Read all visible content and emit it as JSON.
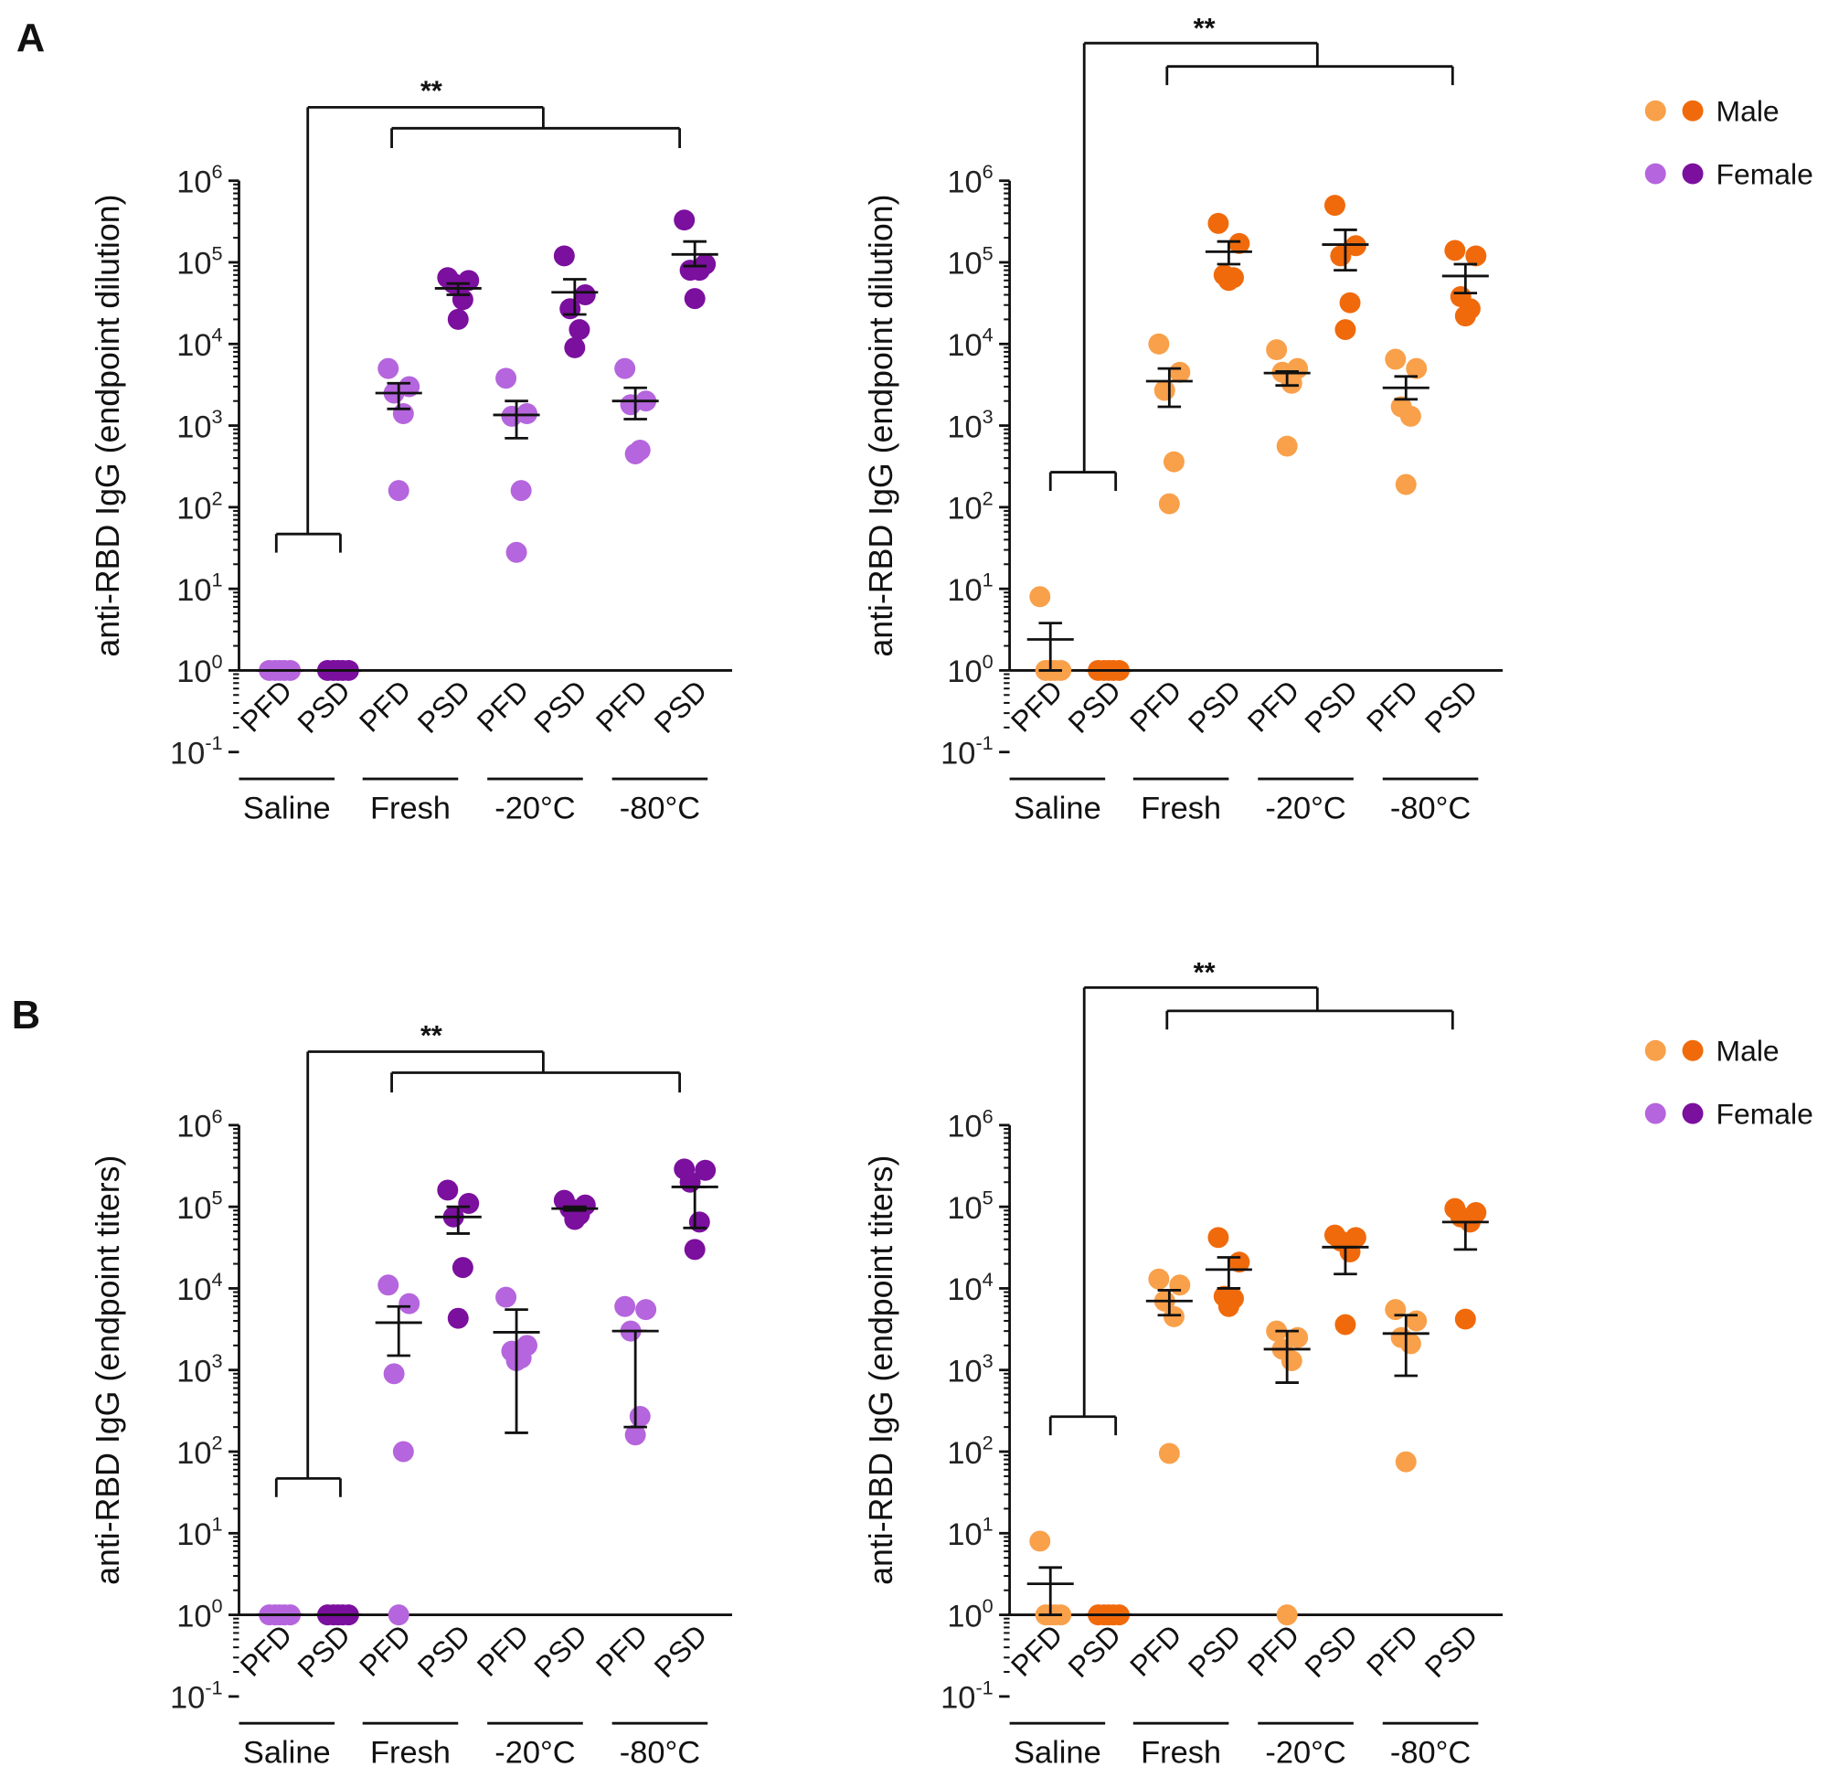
{
  "figure": {
    "panel_labels": [
      "A",
      "B"
    ]
  },
  "legend": {
    "items": [
      {
        "label": "Male",
        "colors": [
          "#f9a04a",
          "#f06a0c"
        ]
      },
      {
        "label": "Female",
        "colors": [
          "#b565dd",
          "#7b0f9e"
        ]
      }
    ]
  },
  "chart_data": [
    {
      "panel": "A",
      "position": "left",
      "type": "scatter",
      "ylabel": "anti-RBD IgG (endpoint dilution)",
      "yscale": "log",
      "ylim": [
        0.1,
        1000000
      ],
      "ytick_base": "10",
      "ytick_exponents": [
        -1,
        0,
        1,
        2,
        3,
        4,
        5,
        6
      ],
      "subgroups": [
        "PFD",
        "PSD",
        "PFD",
        "PSD",
        "PFD",
        "PSD",
        "PFD",
        "PSD"
      ],
      "groups": [
        "Saline",
        "Fresh",
        "-20°C",
        "-80°C"
      ],
      "significance": "**",
      "series": {
        "name": "Female",
        "colors": [
          "#b565dd",
          "#7b0f9e"
        ],
        "points": [
          [
            1,
            1,
            1,
            1,
            1
          ],
          [
            1,
            1,
            1,
            1,
            1
          ],
          [
            5000,
            3000,
            2500,
            1400,
            160
          ],
          [
            65000,
            60000,
            55000,
            35000,
            20000
          ],
          [
            3800,
            1400,
            1300,
            160,
            28
          ],
          [
            120000,
            40000,
            27000,
            15000,
            9000
          ],
          [
            5000,
            2000,
            1800,
            500,
            450
          ],
          [
            330000,
            95000,
            80000,
            80000,
            36000
          ]
        ],
        "means": [
          1,
          1,
          2500,
          48000,
          1350,
          43000,
          2000,
          125000
        ],
        "errors": [
          [
            1,
            1
          ],
          [
            1,
            1
          ],
          [
            1600,
            3300
          ],
          [
            40000,
            55000
          ],
          [
            700,
            2000
          ],
          [
            23000,
            62000
          ],
          [
            1200,
            2900
          ],
          [
            90000,
            180000
          ]
        ]
      }
    },
    {
      "panel": "A",
      "position": "right",
      "type": "scatter",
      "ylabel": "anti-RBD IgG (endpoint dilution)",
      "yscale": "log",
      "ylim": [
        0.1,
        1000000
      ],
      "ytick_base": "10",
      "ytick_exponents": [
        -1,
        0,
        1,
        2,
        3,
        4,
        5,
        6
      ],
      "subgroups": [
        "PFD",
        "PSD",
        "PFD",
        "PSD",
        "PFD",
        "PSD",
        "PFD",
        "PSD"
      ],
      "groups": [
        "Saline",
        "Fresh",
        "-20°C",
        "-80°C"
      ],
      "significance": "**",
      "series": {
        "name": "Male",
        "colors": [
          "#f9a04a",
          "#f06a0c"
        ],
        "points": [
          [
            8,
            1,
            1,
            1,
            1
          ],
          [
            1,
            1,
            1,
            1,
            1
          ],
          [
            10000,
            4500,
            2700,
            360,
            110
          ],
          [
            300000,
            170000,
            70000,
            65000,
            60000
          ],
          [
            8500,
            5000,
            4500,
            3300,
            560
          ],
          [
            500000,
            160000,
            120000,
            32000,
            15000
          ],
          [
            6500,
            5000,
            1700,
            1300,
            190
          ],
          [
            140000,
            120000,
            38000,
            27000,
            22000
          ]
        ],
        "means": [
          2.4,
          1,
          3500,
          135000,
          4400,
          165000,
          2900,
          68000
        ],
        "errors": [
          [
            1,
            3.8
          ],
          [
            1,
            1
          ],
          [
            1700,
            5000
          ],
          [
            95000,
            180000
          ],
          [
            3100,
            4600
          ],
          [
            80000,
            250000
          ],
          [
            2100,
            4000
          ],
          [
            42000,
            95000
          ]
        ]
      }
    },
    {
      "panel": "B",
      "position": "left",
      "type": "scatter",
      "ylabel": "anti-RBD IgG (endpoint titers)",
      "yscale": "log",
      "ylim": [
        0.1,
        1000000
      ],
      "ytick_base": "10",
      "ytick_exponents": [
        -1,
        0,
        1,
        2,
        3,
        4,
        5,
        6
      ],
      "subgroups": [
        "PFD",
        "PSD",
        "PFD",
        "PSD",
        "PFD",
        "PSD",
        "PFD",
        "PSD"
      ],
      "groups": [
        "Saline",
        "Fresh",
        "-20°C",
        "-80°C"
      ],
      "significance": "**",
      "series": {
        "name": "Female",
        "colors": [
          "#b565dd",
          "#7b0f9e"
        ],
        "points": [
          [
            1,
            1,
            1,
            1,
            1
          ],
          [
            1,
            1,
            1,
            1,
            1
          ],
          [
            11000,
            6500,
            900,
            100,
            1
          ],
          [
            160000,
            110000,
            75000,
            18000,
            4300
          ],
          [
            7800,
            2000,
            1700,
            1400,
            1300
          ],
          [
            120000,
            105000,
            95000,
            80000,
            70000
          ],
          [
            6000,
            5500,
            3000,
            270,
            160
          ],
          [
            290000,
            280000,
            200000,
            65000,
            30000
          ]
        ],
        "means": [
          1,
          1,
          3800,
          75000,
          2900,
          95000,
          3000,
          175000
        ],
        "errors": [
          [
            1,
            1
          ],
          [
            1,
            1
          ],
          [
            1500,
            6000
          ],
          [
            47000,
            100000
          ],
          [
            170,
            5500
          ],
          [
            90000,
            100000
          ],
          [
            200,
            3000
          ],
          [
            55000,
            175000
          ]
        ]
      }
    },
    {
      "panel": "B",
      "position": "right",
      "type": "scatter",
      "ylabel": "anti-RBD IgG (endpoint titers)",
      "yscale": "log",
      "ylim": [
        0.1,
        1000000
      ],
      "ytick_base": "10",
      "ytick_exponents": [
        -1,
        0,
        1,
        2,
        3,
        4,
        5,
        6
      ],
      "subgroups": [
        "PFD",
        "PSD",
        "PFD",
        "PSD",
        "PFD",
        "PSD",
        "PFD",
        "PSD"
      ],
      "groups": [
        "Saline",
        "Fresh",
        "-20°C",
        "-80°C"
      ],
      "significance": "**",
      "series": {
        "name": "Male",
        "colors": [
          "#f9a04a",
          "#f06a0c"
        ],
        "points": [
          [
            8,
            1,
            1,
            1,
            1
          ],
          [
            1,
            1,
            1,
            1,
            1
          ],
          [
            13000,
            11000,
            7000,
            4500,
            95
          ],
          [
            42000,
            21000,
            8000,
            7500,
            6000
          ],
          [
            3000,
            2500,
            1800,
            1300,
            1
          ],
          [
            45000,
            42000,
            38000,
            28000,
            3600
          ],
          [
            5500,
            4000,
            2500,
            2100,
            75
          ],
          [
            95000,
            85000,
            75000,
            65000,
            4200
          ]
        ],
        "means": [
          2.4,
          1,
          7000,
          17000,
          1800,
          32000,
          2800,
          65000
        ],
        "errors": [
          [
            1,
            3.8
          ],
          [
            1,
            1
          ],
          [
            4700,
            9500
          ],
          [
            10000,
            24000
          ],
          [
            700,
            3000
          ],
          [
            15000,
            32000
          ],
          [
            850,
            4700
          ],
          [
            30000,
            65000
          ]
        ]
      }
    }
  ]
}
